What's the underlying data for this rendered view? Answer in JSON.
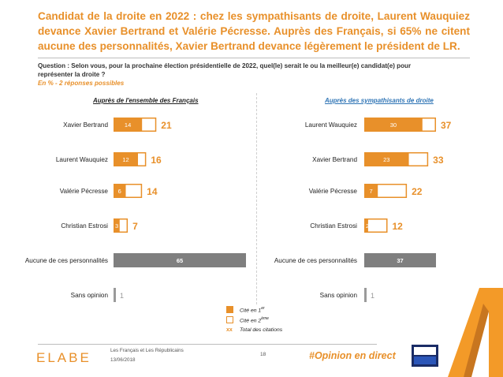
{
  "title": "Candidat de la droite en 2022 : chez les sympathisants de droite, Laurent Wauquiez devance Xavier Bertrand et Valérie Pécresse. Auprès des Français, si 65% ne citent aucune des personnalités, Xavier Bertrand devance légèrement le président de LR.",
  "question": "Question : Selon vous, pour la prochaine élection présidentielle de 2022, quel(le) serait le ou la meilleur(e) candidat(e) pour représenter la droite ?",
  "subquestion": "En % - 2 réponses possibles",
  "legend": {
    "first": "Cité en 1",
    "first_sup": "er",
    "second": "Cité en 2",
    "second_sup": "ème",
    "total_marker": "xx",
    "total": "Total des citations"
  },
  "footer": {
    "logo": "ELABE",
    "line1": "Les Français et Les Républicains",
    "line2": "13/06/2018",
    "page": "18",
    "hashtag": "#Opinion en direct",
    "tv_logo": "BFM TV"
  },
  "colors": {
    "accent": "#E8902A",
    "gray_bar": "#7F7F7F",
    "sympathisants_title": "#2E74B5"
  },
  "chart_data": [
    {
      "type": "bar",
      "title": "Auprès de l'ensemble des Français",
      "categories": [
        "Xavier Bertrand",
        "Laurent Wauquiez",
        "Valérie Pécresse",
        "Christian Estrosi",
        "Aucune de ces personnalités",
        "Sans opinion"
      ],
      "series": [
        {
          "name": "Cité en 1er",
          "values": [
            14,
            12,
            6,
            3,
            null,
            null
          ]
        },
        {
          "name": "Total des citations",
          "values": [
            21,
            16,
            14,
            7,
            65,
            1
          ]
        }
      ],
      "xlim": [
        0,
        65
      ]
    },
    {
      "type": "bar",
      "title": "Auprès des sympathisants de droite",
      "categories": [
        "Laurent Wauquiez",
        "Xavier Bertrand",
        "Valérie Pécresse",
        "Christian Estrosi",
        "Aucune de ces personnalités",
        "Sans opinion"
      ],
      "series": [
        {
          "name": "Cité en 1er",
          "values": [
            30,
            23,
            7,
            2,
            null,
            null
          ]
        },
        {
          "name": "Total des citations",
          "values": [
            37,
            33,
            22,
            12,
            37,
            1
          ]
        }
      ],
      "xlim": [
        0,
        37
      ]
    }
  ]
}
